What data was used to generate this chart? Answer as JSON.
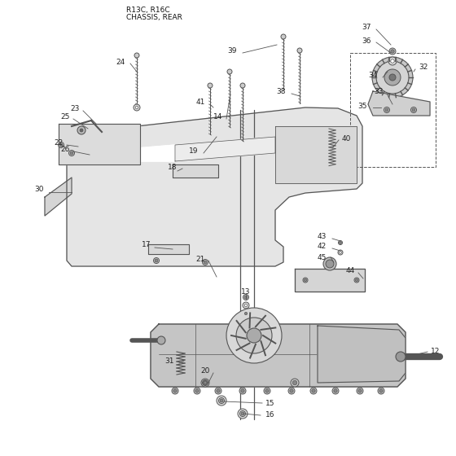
{
  "title_line1": "R13C, R16C",
  "title_line2": "CHASSIS, REAR",
  "bg_color": "#ffffff",
  "line_color": "#555555",
  "text_color": "#222222",
  "title_color": "#111111",
  "figsize": [
    5.6,
    5.6
  ],
  "dpi": 100
}
